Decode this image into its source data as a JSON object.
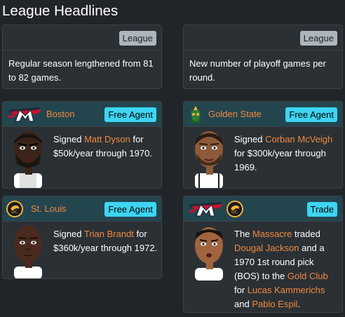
{
  "page": {
    "title": "League Headlines"
  },
  "colors": {
    "link": "#f0883e",
    "badge_cyan": "#3dd5f3",
    "badge_gray": "#adb5bd",
    "team_header": "#23454e",
    "card_bg": "#2b3035"
  },
  "cards": [
    {
      "badge": "League",
      "text": "Regular season lengthened from 81 to 82 games."
    },
    {
      "badge": "League",
      "text": "New number of playoff games per round."
    },
    {
      "team": "Boston",
      "badge": "Free Agent",
      "logo": "boston-logo",
      "t1": "Signed ",
      "player": "Matt Dyson",
      "t2": " for $50k/year through 1970."
    },
    {
      "team": "Golden State",
      "badge": "Free Agent",
      "logo": "golden-state-logo",
      "t1": "Signed ",
      "player": "Corban McVeigh",
      "t2": " for $300k/year through 1969."
    },
    {
      "team": "St. Louis",
      "badge": "Free Agent",
      "logo": "st-louis-logo",
      "t1": "Signed ",
      "player": "Trian Brandt",
      "t2": " for $360k/year through 1972."
    },
    {
      "badge": "Trade",
      "p0": "The ",
      "team_a": "Massacre",
      "p1": " traded ",
      "player_a": "Dougal Jackson",
      "p2": " and a 1970 1st round pick (BOS) to the ",
      "team_b": "Gold Club",
      "p3": " for ",
      "player_b": "Lucas Kammerichs",
      "p4": " and ",
      "player_c": "Pablo Espil",
      "p5": "."
    }
  ]
}
